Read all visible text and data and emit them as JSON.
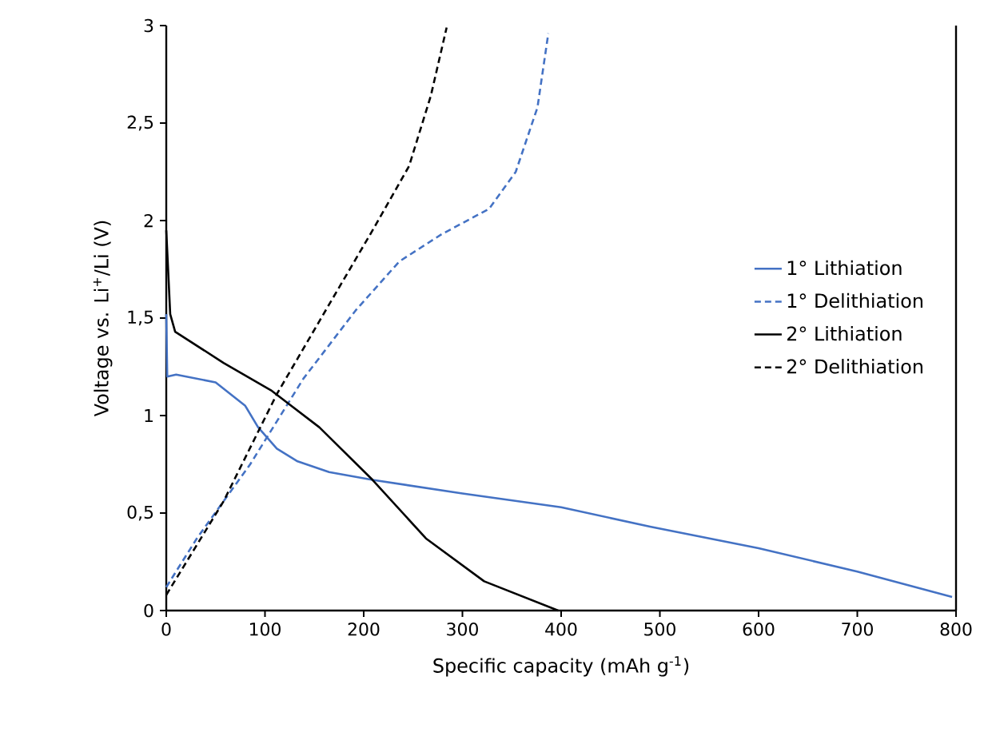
{
  "chart_data": {
    "type": "line",
    "xlabel": "Specific capacity (mAh g$^{-1}$)",
    "ylabel": "Voltage vs. Li$^{+}$/Li (V)",
    "xlim": [
      0,
      800
    ],
    "ylim": [
      0,
      3
    ],
    "xticks": [
      0,
      100,
      200,
      300,
      400,
      500,
      600,
      700,
      800
    ],
    "yticks": [
      0,
      {
        "value": 0.5,
        "label": "0,5"
      },
      1,
      {
        "value": 1.5,
        "label": "1,5"
      },
      2,
      {
        "value": 2.5,
        "label": "2,5"
      },
      3
    ],
    "legend": "right",
    "series": [
      {
        "name": "1° Lithiation",
        "color": "#4472c4",
        "line_style": "solid",
        "x": [
          0,
          1,
          10,
          50,
          80,
          93,
          112,
          133,
          165,
          209,
          300,
          400,
          490,
          600,
          700,
          796
        ],
        "values": [
          1.52,
          1.2,
          1.21,
          1.17,
          1.05,
          0.94,
          0.83,
          0.765,
          0.71,
          0.67,
          0.6,
          0.53,
          0.43,
          0.32,
          0.2,
          0.07
        ]
      },
      {
        "name": "1° Delithiation",
        "color": "#4472c4",
        "line_style": "dashed",
        "x": [
          0,
          31,
          85,
          139,
          192,
          236,
          279,
          327,
          354,
          376,
          387
        ],
        "values": [
          0.12,
          0.37,
          0.75,
          1.19,
          1.54,
          1.79,
          1.93,
          2.06,
          2.25,
          2.58,
          2.96
        ]
      },
      {
        "name": "2° Lithiation",
        "color": "#000000",
        "line_style": "solid",
        "x": [
          0,
          4,
          9,
          58,
          106,
          155,
          209,
          263,
          322,
          397
        ],
        "values": [
          1.95,
          1.52,
          1.43,
          1.27,
          1.13,
          0.94,
          0.67,
          0.37,
          0.15,
          0
        ]
      },
      {
        "name": "2° Delithiation",
        "color": "#000000",
        "line_style": "dashed",
        "x": [
          0,
          58,
          112,
          165,
          209,
          246,
          268,
          284
        ],
        "values": [
          0.08,
          0.56,
          1.11,
          1.57,
          1.95,
          2.28,
          2.64,
          2.99
        ]
      }
    ]
  }
}
